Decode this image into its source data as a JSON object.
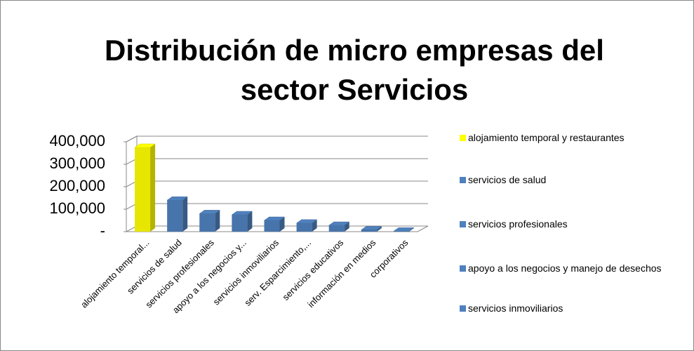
{
  "chart_data": {
    "type": "bar",
    "title_lines": [
      "Distribución de micro empresas del",
      "sector Servicios"
    ],
    "categories": [
      "alojamiento temporal...",
      "servicios de salud",
      "servicios profesionales",
      "apoyo a los negocios y...",
      "servicios inmoviliarios",
      "serv. Esparcimiento,...",
      "servicios educativos",
      "información en medios",
      "corporativos"
    ],
    "values": [
      375000,
      140000,
      80000,
      75000,
      50000,
      38000,
      28000,
      8000,
      2000
    ],
    "colors": [
      "#ffff00",
      "#4f81bd",
      "#4f81bd",
      "#4f81bd",
      "#4f81bd",
      "#4f81bd",
      "#4f81bd",
      "#4f81bd",
      "#4f81bd"
    ],
    "ylim": [
      0,
      400000
    ],
    "yticks": [
      {
        "value": 0,
        "label": "-"
      },
      {
        "value": 100000,
        "label": "100,000"
      },
      {
        "value": 200000,
        "label": "200,000"
      },
      {
        "value": 300000,
        "label": "300,000"
      },
      {
        "value": 400000,
        "label": "400,000"
      }
    ],
    "grid": true,
    "legend": [
      {
        "name": "alojamiento temporal y restaurantes",
        "color": "#ffff00"
      },
      {
        "name": "servicios de salud",
        "color": "#4f81bd"
      },
      {
        "name": "servicios profesionales",
        "color": "#4f81bd"
      },
      {
        "name": "apoyo a los negocios y manejo de desechos",
        "color": "#4f81bd"
      },
      {
        "name": "servicios inmoviliarios",
        "color": "#4f81bd"
      }
    ]
  }
}
